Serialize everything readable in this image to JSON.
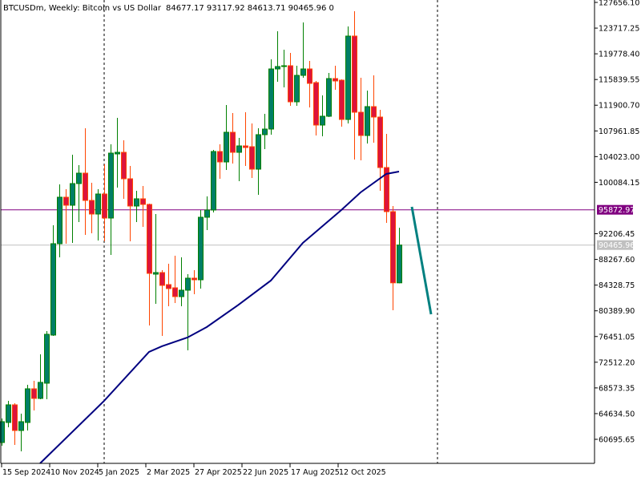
{
  "window": {
    "symbol_title": "BTCUSDm, Weekly:  Bitcoin vs US Dollar",
    "ohlc_readout": "84677.17 93117.92 84613.71 90465.96  0"
  },
  "colors": {
    "bull_body": "#007F66",
    "bull_outline": "#008000",
    "bear_body": "#DC143C",
    "bear_outline": "#FF4500",
    "moving_average": "#000080",
    "trend_line": "#008080",
    "horizontal_line": "#800080",
    "bid_line": "#C0C0C0",
    "separator": "#000000"
  },
  "chart_data": {
    "type": "candlestick",
    "title": "BTCUSDm, Weekly:  Bitcoin vs US Dollar",
    "timeframe": "weekly",
    "ylim": [
      57010,
      128025
    ],
    "grid": false,
    "y_ticks": [
      "127656.10",
      "123717.25",
      "119778.40",
      "115839.55",
      "111900.70",
      "107961.85",
      "104023.00",
      "100084.15",
      "92206.45",
      "88267.60",
      "84328.75",
      "80389.90",
      "76451.05",
      "72512.20",
      "68573.35",
      "64634.50",
      "60695.65"
    ],
    "x_ticks": [
      "15 Sep 2024",
      "10 Nov 2024",
      "5 Jan 2025",
      "2 Mar 2025",
      "27 Apr 2025",
      "22 Jun 2025",
      "17 Aug 2025",
      "12 Oct 2025"
    ],
    "candles_columns": [
      "date",
      "open",
      "high",
      "low",
      "close"
    ],
    "candles": [
      [
        "2024-09-15",
        60206,
        63892,
        59715,
        63401
      ],
      [
        "2024-09-22",
        63278,
        66595,
        62541,
        65981
      ],
      [
        "2024-09-29",
        65981,
        66226,
        59838,
        62049
      ],
      [
        "2024-10-06",
        62049,
        64629,
        58855,
        63401
      ],
      [
        "2024-10-13",
        63278,
        69052,
        62049,
        68438
      ],
      [
        "2024-10-20",
        68438,
        69666,
        65121,
        66964
      ],
      [
        "2024-10-27",
        66964,
        73721,
        66841,
        69421
      ],
      [
        "2024-11-03",
        69298,
        77284,
        66841,
        76792
      ],
      [
        "2024-11-10",
        76670,
        93501,
        76547,
        90676
      ],
      [
        "2024-11-17",
        90676,
        99767,
        88587,
        97801
      ],
      [
        "2024-11-24",
        97801,
        99030,
        90676,
        96573
      ],
      [
        "2024-12-01",
        96573,
        104313,
        90798,
        99890
      ],
      [
        "2024-12-08",
        99890,
        102716,
        93993,
        101487
      ],
      [
        "2024-12-15",
        101487,
        108367,
        92027,
        97310
      ],
      [
        "2024-12-22",
        97310,
        100013,
        92273,
        95221
      ],
      [
        "2024-12-29",
        95221,
        99030,
        91167,
        98293
      ],
      [
        "2025-01-05",
        98293,
        102839,
        91044,
        94607
      ],
      [
        "2025-01-12",
        94607,
        105910,
        88956,
        104559
      ],
      [
        "2025-01-19",
        104436,
        109965,
        99276,
        104682
      ],
      [
        "2025-01-26",
        104682,
        106524,
        97556,
        100627
      ],
      [
        "2025-02-02",
        100627,
        102593,
        91044,
        96450
      ],
      [
        "2025-02-09",
        96450,
        98784,
        93993,
        97556
      ],
      [
        "2025-02-16",
        97556,
        99521,
        93256,
        96696
      ],
      [
        "2025-02-23",
        96696,
        96819,
        78144,
        86130
      ],
      [
        "2025-03-02",
        86007,
        95221,
        81461,
        86253
      ],
      [
        "2025-03-09",
        86253,
        86621,
        76547,
        84287
      ],
      [
        "2025-03-16",
        84410,
        87604,
        81092,
        83795
      ],
      [
        "2025-03-23",
        83918,
        88833,
        81584,
        82567
      ],
      [
        "2025-03-30",
        82567,
        88587,
        81092,
        83550
      ],
      [
        "2025-04-06",
        83550,
        86007,
        74335,
        85393
      ],
      [
        "2025-04-13",
        85393,
        86621,
        82935,
        85147
      ],
      [
        "2025-04-20",
        85147,
        95836,
        83795,
        94730
      ],
      [
        "2025-04-27",
        94730,
        97924,
        92764,
        95836
      ],
      [
        "2025-05-04",
        95836,
        105050,
        95467,
        104804
      ],
      [
        "2025-05-11",
        104804,
        105910,
        100627,
        103207
      ],
      [
        "2025-05-18",
        103207,
        111930,
        101979,
        107753
      ],
      [
        "2025-05-25",
        107753,
        110702,
        102962,
        104682
      ],
      [
        "2025-06-01",
        104682,
        106893,
        100259,
        105664
      ],
      [
        "2025-06-08",
        105664,
        110825,
        102593,
        105419
      ],
      [
        "2025-06-15",
        105542,
        109105,
        100750,
        102102
      ],
      [
        "2025-06-22",
        102102,
        108367,
        98170,
        107385
      ],
      [
        "2025-06-29",
        107385,
        110579,
        105173,
        108245
      ],
      [
        "2025-07-06",
        108245,
        118933,
        107385,
        117459
      ],
      [
        "2025-07-13",
        117459,
        123233,
        115493,
        117828
      ],
      [
        "2025-07-20",
        117828,
        120408,
        114633,
        117950
      ],
      [
        "2025-07-27",
        117950,
        119916,
        111807,
        112422
      ],
      [
        "2025-08-03",
        112422,
        117950,
        111807,
        116476
      ],
      [
        "2025-08-10",
        116476,
        124585,
        116108,
        117459
      ],
      [
        "2025-08-17",
        117459,
        118688,
        111562,
        115248
      ],
      [
        "2025-08-24",
        115370,
        115616,
        107262,
        108859
      ],
      [
        "2025-08-31",
        108859,
        113405,
        107139,
        110210
      ],
      [
        "2025-09-07",
        110210,
        116845,
        110087,
        115985
      ],
      [
        "2025-09-14",
        115985,
        117950,
        114265,
        115616
      ],
      [
        "2025-09-21",
        115739,
        115862,
        108613,
        109719
      ],
      [
        "2025-09-28",
        109719,
        123971,
        109105,
        122496
      ],
      [
        "2025-10-05",
        122496,
        126305,
        103576,
        110825
      ],
      [
        "2025-10-12",
        110825,
        116108,
        103453,
        107262
      ],
      [
        "2025-10-19",
        107262,
        114142,
        106033,
        111685
      ],
      [
        "2025-10-26",
        111685,
        116476,
        106156,
        110087
      ],
      [
        "2025-11-02",
        110087,
        111193,
        98784,
        102347
      ],
      [
        "2025-11-09",
        102347,
        107507,
        93870,
        95590
      ],
      [
        "2025-11-16",
        95590,
        96450,
        80478,
        84677.17
      ],
      [
        "2025-11-23",
        84677.17,
        93117.92,
        84613.71,
        90465.96
      ]
    ],
    "moving_average": [
      [
        "2024-10-27",
        57012
      ],
      [
        "2025-01-05",
        66595
      ],
      [
        "2025-02-23",
        74090
      ],
      [
        "2025-03-09",
        74950
      ],
      [
        "2025-04-06",
        76300
      ],
      [
        "2025-04-27",
        77900
      ],
      [
        "2025-06-01",
        81340
      ],
      [
        "2025-07-06",
        85025
      ],
      [
        "2025-08-10",
        90800
      ],
      [
        "2025-09-21",
        95835
      ],
      [
        "2025-10-12",
        98540
      ],
      [
        "2025-11-09",
        101365
      ],
      [
        "2025-11-23",
        101730
      ]
    ],
    "trend_line": [
      [
        "2025-12-07",
        96330
      ],
      [
        "2025-12-28",
        79860
      ]
    ],
    "horizontal_line": {
      "price": 95872.97,
      "label": "95872.97"
    },
    "bid_line": {
      "price": 90465.96,
      "label": "90465.96"
    },
    "period_separators": [
      "2025-01-05",
      "2026-01-04"
    ]
  }
}
